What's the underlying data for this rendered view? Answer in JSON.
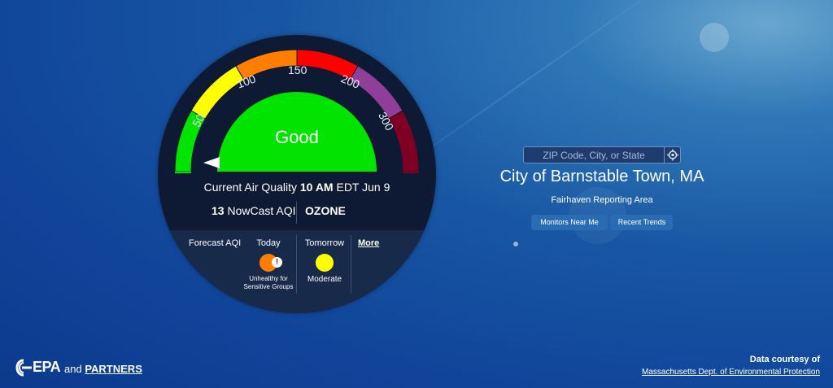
{
  "gauge": {
    "ticks": [
      "50",
      "100",
      "150",
      "200",
      "300"
    ],
    "status": "Good",
    "band_colors": [
      "#00e400",
      "#ffff00",
      "#ff7e00",
      "#ff0000",
      "#8f3f97",
      "#7e0023"
    ],
    "status_color": "#00e400",
    "current_aqi_value": 13
  },
  "current": {
    "prefix": "Current Air Quality",
    "time": "10 AM",
    "suffix": "EDT Jun 9",
    "aqi_value": "13",
    "aqi_label": "NowCast AQI",
    "pollutant": "OZONE"
  },
  "forecast": {
    "label": "Forecast AQI",
    "today": {
      "title": "Today",
      "category": "Unhealthy for Sensitive Groups",
      "color": "#ff7e00",
      "alert_icon": "alert-icon"
    },
    "tomorrow": {
      "title": "Tomorrow",
      "category": "Moderate",
      "color": "#ffff00"
    },
    "more_link": "More"
  },
  "search": {
    "placeholder": "ZIP Code, City, or State",
    "locate_icon": "crosshair-icon"
  },
  "location": {
    "city": "City of Barnstable Town, MA",
    "reporting_area": "Fairhaven Reporting Area"
  },
  "buttons": {
    "monitors": "Monitors Near Me",
    "trends": "Recent Trends"
  },
  "footer": {
    "epa": "EPA",
    "and": "and",
    "partners": "PARTNERS",
    "credit_label": "Data courtesy of",
    "credit_link": "Massachusetts Dept. of Environmental Protection"
  }
}
